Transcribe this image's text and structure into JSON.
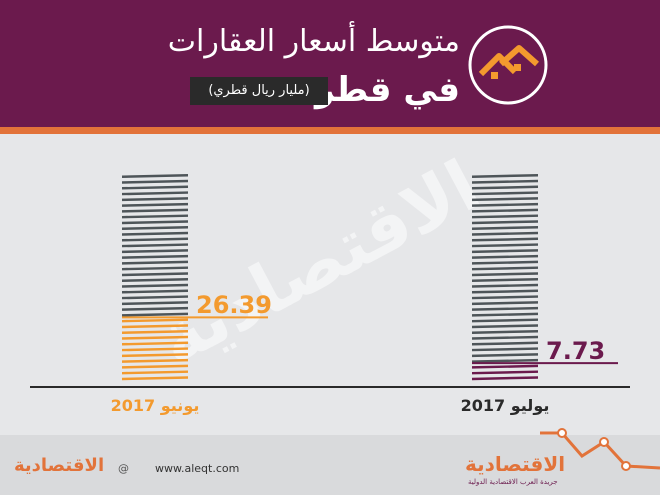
{
  "header": {
    "title_line1": "متوسط أسعار العقارات",
    "title_line2": "في قطر",
    "unit": "(مليار ريال قطري)"
  },
  "colors": {
    "header": "#6b1a4d",
    "accent": "#e2733a",
    "bar_dark": "#4e5559",
    "june": "#f39a2e",
    "july": "#6b1a4d"
  },
  "chart_data": {
    "type": "bar",
    "categories": [
      "يونيو 2017",
      "يوليو 2017"
    ],
    "values": [
      26.39,
      7.73
    ],
    "value_labels": [
      "26.39",
      "7.73"
    ],
    "series_colors": [
      "#f39a2e",
      "#6b1a4d"
    ],
    "ylim": [
      0,
      85
    ],
    "title": "متوسط أسعار العقارات في قطر",
    "subtitle": "(مليار ريال قطري)",
    "xlabel": "",
    "ylabel": ""
  },
  "footer": {
    "left_logo": "الاقتصادية",
    "social": "@",
    "url": "www.aleqt.com",
    "brand": "الاقتصادية",
    "tagline": "جريدة العرب الاقتصادية الدولية"
  }
}
